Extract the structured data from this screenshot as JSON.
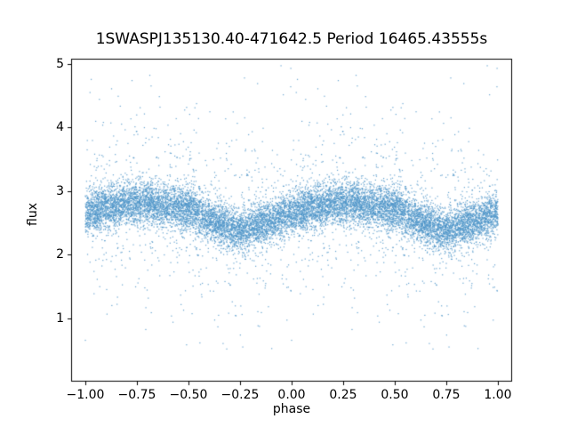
{
  "chart_data": {
    "type": "scatter",
    "title": "1SWASPJ135130.40-471642.5 Period 16465.43555s",
    "xlabel": "phase",
    "ylabel": "flux",
    "xlim": [
      -1.069,
      1.069
    ],
    "ylim": [
      0.0,
      5.08
    ],
    "x_ticks": [
      -1.0,
      -0.75,
      -0.5,
      -0.25,
      0.0,
      0.25,
      0.5,
      0.75,
      1.0
    ],
    "x_tick_labels": [
      "−1.00",
      "−0.75",
      "−0.50",
      "−0.25",
      "0.00",
      "0.25",
      "0.50",
      "0.75",
      "1.00"
    ],
    "y_ticks": [
      1,
      2,
      3,
      4,
      5
    ],
    "y_tick_labels": [
      "1",
      "2",
      "3",
      "4",
      "5"
    ],
    "grid": false,
    "legend": null,
    "marker_color": "#4c94c8",
    "marker_size_px": 1.2,
    "marker_alpha": 0.85,
    "n_points": 7000,
    "plotted_twice_shift": -1.0,
    "seed": 42,
    "trend": {
      "phase": [
        0.0,
        0.1,
        0.2,
        0.3,
        0.4,
        0.5,
        0.6,
        0.7,
        0.75,
        0.8,
        0.9,
        1.0
      ],
      "flux": [
        2.65,
        2.74,
        2.8,
        2.8,
        2.75,
        2.72,
        2.56,
        2.42,
        2.36,
        2.42,
        2.55,
        2.65
      ]
    },
    "noise": {
      "core_sigma": 0.17,
      "tail_sigma": 0.78,
      "tail_fraction": 0.12,
      "clip": [
        0.35,
        5.05
      ]
    }
  }
}
